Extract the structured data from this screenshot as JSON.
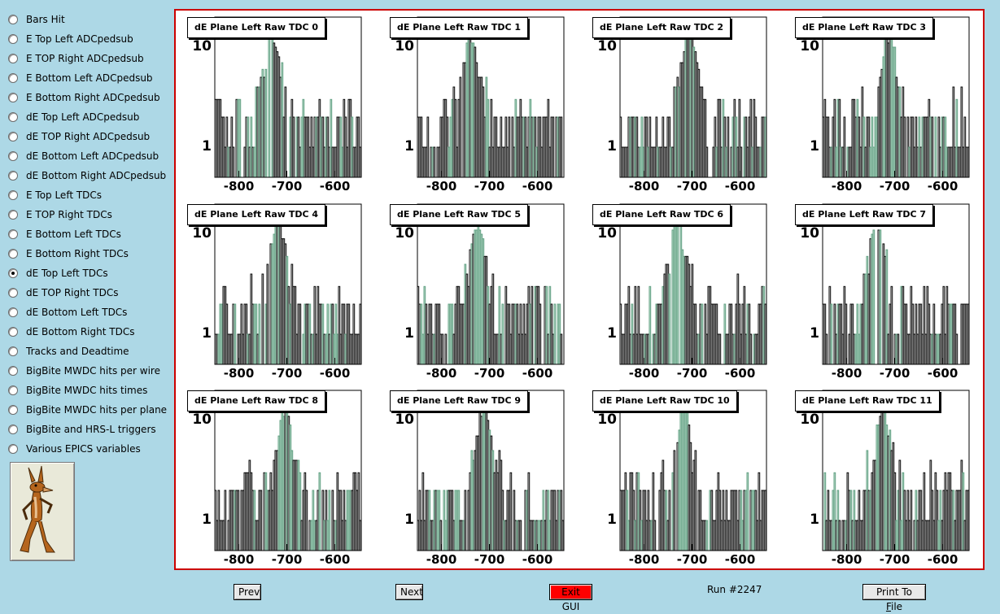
{
  "sidebar": {
    "items": [
      {
        "label": "Bars Hit",
        "checked": false
      },
      {
        "label": "E Top Left ADCpedsub",
        "checked": false
      },
      {
        "label": "E TOP Right ADCpedsub",
        "checked": false
      },
      {
        "label": "E Bottom Left ADCpedsub",
        "checked": false
      },
      {
        "label": "E Bottom Right ADCpedsub",
        "checked": false
      },
      {
        "label": "dE Top Left ADCpedsub",
        "checked": false
      },
      {
        "label": "dE TOP Right ADCpedsub",
        "checked": false
      },
      {
        "label": "dE Bottom Left ADCpedsub",
        "checked": false
      },
      {
        "label": "dE Bottom Right ADCpedsub",
        "checked": false
      },
      {
        "label": "E Top Left TDCs",
        "checked": false
      },
      {
        "label": "E TOP Right TDCs",
        "checked": false
      },
      {
        "label": "E Bottom Left TDCs",
        "checked": false
      },
      {
        "label": "E Bottom Right TDCs",
        "checked": false
      },
      {
        "label": "dE Top Left TDCs",
        "checked": true
      },
      {
        "label": "dE TOP Right TDCs",
        "checked": false
      },
      {
        "label": "dE Bottom Left TDCs",
        "checked": false
      },
      {
        "label": "dE Bottom Right TDCs",
        "checked": false
      },
      {
        "label": "Tracks and Deadtime",
        "checked": false
      },
      {
        "label": "BigBite MWDC hits per wire",
        "checked": false
      },
      {
        "label": "BigBite MWDC hits times",
        "checked": false
      },
      {
        "label": "BigBite MWDC hits per plane",
        "checked": false
      },
      {
        "label": "BigBite and HRS-L triggers",
        "checked": false
      },
      {
        "label": "Various EPICS variables",
        "checked": false
      }
    ]
  },
  "logo": {
    "icon": "wile-e-coyote-icon"
  },
  "panels": [
    {
      "title": "dE Plane Left Raw TDC 0"
    },
    {
      "title": "dE Plane Left Raw TDC 1"
    },
    {
      "title": "dE Plane Left Raw TDC 2"
    },
    {
      "title": "dE Plane Left Raw TDC 3"
    },
    {
      "title": "dE Plane Left Raw TDC 4"
    },
    {
      "title": "dE Plane Left Raw TDC 5"
    },
    {
      "title": "dE Plane Left Raw TDC 6"
    },
    {
      "title": "dE Plane Left Raw TDC 7"
    },
    {
      "title": "dE Plane Left Raw TDC 8"
    },
    {
      "title": "dE Plane Left Raw TDC 9"
    },
    {
      "title": "dE Plane Left Raw TDC 10"
    },
    {
      "title": "dE Plane Left Raw TDC 11"
    }
  ],
  "axes": {
    "x_ticks": [
      "-800",
      "-700",
      "-600"
    ],
    "y_ticks": [
      "1",
      "10"
    ],
    "xlim": [
      -850,
      -545
    ],
    "ylim": [
      0.5,
      20
    ],
    "y_scale": "log"
  },
  "colors": {
    "background": "#add8e6",
    "frame": "#cc0000",
    "histogram_black": "#000000",
    "histogram_green": "#5f9f80",
    "histogram_fill": "#c8e4d6",
    "exit_button": "#ff0000"
  },
  "buttons": {
    "prev": "Prev",
    "next": "Next",
    "exit": "Exit GUI",
    "print_prefix": "Print To ",
    "print_underlined": "F",
    "print_suffix": "ile"
  },
  "status": {
    "run": "Run #2247"
  }
}
